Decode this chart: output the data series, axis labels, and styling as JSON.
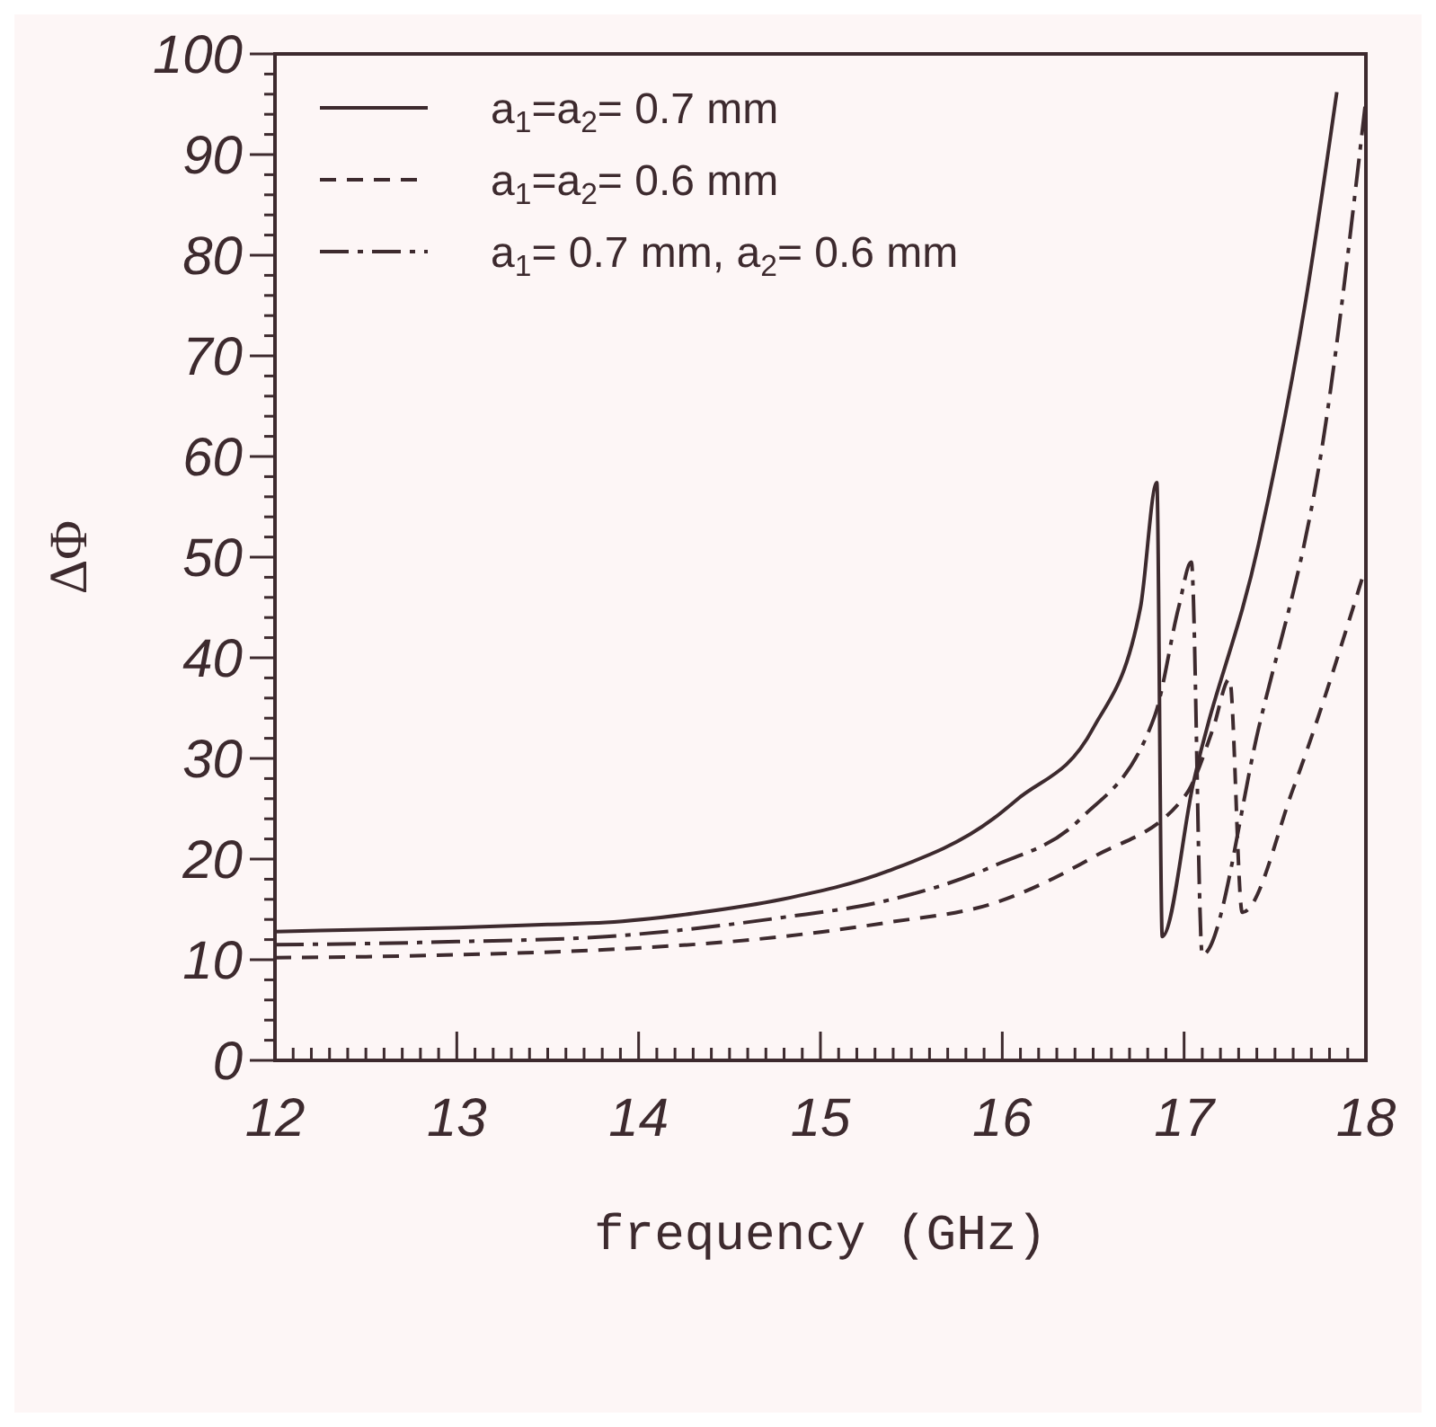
{
  "chart_data": {
    "type": "line",
    "xlabel": "frequency (GHz)",
    "ylabel": "ΔΦ",
    "xlim": [
      12,
      18
    ],
    "ylim": [
      0,
      100
    ],
    "xticks": [
      12,
      13,
      14,
      15,
      16,
      17,
      18,
      {
        "value": 12.1,
        "label": null
      },
      {
        "value": 12.2,
        "label": null
      },
      {
        "value": 12.3,
        "label": null
      },
      {
        "value": 12.4,
        "label": null
      },
      {
        "value": 12.5,
        "label": null
      },
      {
        "value": 12.6,
        "label": null
      },
      {
        "value": 12.7,
        "label": null
      },
      {
        "value": 12.8,
        "label": null
      },
      {
        "value": 12.9,
        "label": null
      },
      {
        "value": 13.1,
        "label": null
      },
      {
        "value": 13.2,
        "label": null
      },
      {
        "value": 13.3,
        "label": null
      },
      {
        "value": 13.4,
        "label": null
      },
      {
        "value": 13.5,
        "label": null
      },
      {
        "value": 13.6,
        "label": null
      },
      {
        "value": 13.7,
        "label": null
      },
      {
        "value": 13.8,
        "label": null
      },
      {
        "value": 13.9,
        "label": null
      },
      {
        "value": 14.1,
        "label": null
      },
      {
        "value": 14.2,
        "label": null
      },
      {
        "value": 14.3,
        "label": null
      },
      {
        "value": 14.4,
        "label": null
      },
      {
        "value": 14.5,
        "label": null
      },
      {
        "value": 14.6,
        "label": null
      },
      {
        "value": 14.7,
        "label": null
      },
      {
        "value": 14.8,
        "label": null
      },
      {
        "value": 14.9,
        "label": null
      },
      {
        "value": 15.1,
        "label": null
      },
      {
        "value": 15.2,
        "label": null
      },
      {
        "value": 15.3,
        "label": null
      },
      {
        "value": 15.4,
        "label": null
      },
      {
        "value": 15.5,
        "label": null
      },
      {
        "value": 15.6,
        "label": null
      },
      {
        "value": 15.7,
        "label": null
      },
      {
        "value": 15.8,
        "label": null
      },
      {
        "value": 15.9,
        "label": null
      },
      {
        "value": 16.1,
        "label": null
      },
      {
        "value": 16.2,
        "label": null
      },
      {
        "value": 16.3,
        "label": null
      },
      {
        "value": 16.4,
        "label": null
      },
      {
        "value": 16.5,
        "label": null
      },
      {
        "value": 16.6,
        "label": null
      },
      {
        "value": 16.7,
        "label": null
      },
      {
        "value": 16.8,
        "label": null
      },
      {
        "value": 16.9,
        "label": null
      },
      {
        "value": 17.1,
        "label": null
      },
      {
        "value": 17.2,
        "label": null
      },
      {
        "value": 17.3,
        "label": null
      },
      {
        "value": 17.4,
        "label": null
      },
      {
        "value": 17.5,
        "label": null
      },
      {
        "value": 17.6,
        "label": null
      },
      {
        "value": 17.7,
        "label": null
      },
      {
        "value": 17.8,
        "label": null
      },
      {
        "value": 17.9,
        "label": null
      }
    ],
    "yticks": [
      0,
      10,
      20,
      30,
      40,
      50,
      60,
      70,
      80,
      90,
      100,
      {
        "value": 2,
        "label": null
      },
      {
        "value": 4,
        "label": null
      },
      {
        "value": 6,
        "label": null
      },
      {
        "value": 8,
        "label": null
      },
      {
        "value": 12,
        "label": null
      },
      {
        "value": 14,
        "label": null
      },
      {
        "value": 16,
        "label": null
      },
      {
        "value": 18,
        "label": null
      },
      {
        "value": 22,
        "label": null
      },
      {
        "value": 24,
        "label": null
      },
      {
        "value": 26,
        "label": null
      },
      {
        "value": 28,
        "label": null
      },
      {
        "value": 32,
        "label": null
      },
      {
        "value": 34,
        "label": null
      },
      {
        "value": 36,
        "label": null
      },
      {
        "value": 38,
        "label": null
      },
      {
        "value": 42,
        "label": null
      },
      {
        "value": 44,
        "label": null
      },
      {
        "value": 46,
        "label": null
      },
      {
        "value": 48,
        "label": null
      },
      {
        "value": 52,
        "label": null
      },
      {
        "value": 54,
        "label": null
      },
      {
        "value": 56,
        "label": null
      },
      {
        "value": 58,
        "label": null
      },
      {
        "value": 62,
        "label": null
      },
      {
        "value": 64,
        "label": null
      },
      {
        "value": 66,
        "label": null
      },
      {
        "value": 68,
        "label": null
      },
      {
        "value": 72,
        "label": null
      },
      {
        "value": 74,
        "label": null
      },
      {
        "value": 76,
        "label": null
      },
      {
        "value": 78,
        "label": null
      },
      {
        "value": 82,
        "label": null
      },
      {
        "value": 84,
        "label": null
      },
      {
        "value": 86,
        "label": null
      },
      {
        "value": 88,
        "label": null
      },
      {
        "value": 92,
        "label": null
      },
      {
        "value": 94,
        "label": null
      },
      {
        "value": 96,
        "label": null
      },
      {
        "value": 98,
        "label": null
      }
    ],
    "grid": false,
    "legend": "top left",
    "marker": "none",
    "series": [
      {
        "name": "a$_{1}$=a$_{2}$= 0.7 mm",
        "color": "#3d2a2e",
        "line_style": "solid",
        "x": [
          12,
          12.5,
          13,
          13.5,
          13.82,
          14.3,
          14.79,
          15.37,
          15.95,
          16.08,
          16.5,
          16.76,
          16.85,
          16.88,
          17.05,
          17.41,
          17.67,
          17.84
        ],
        "values": [
          12.8,
          13,
          13.2,
          13.5,
          13.7,
          14.6,
          16,
          18.8,
          24,
          25.9,
          33,
          45,
          57.4,
          12.3,
          27.5,
          51.3,
          75.6,
          96.2
        ]
      },
      {
        "name": "a$_{1}$=a$_{2}$= 0.6 mm",
        "color": "#3d2a2e",
        "line_style": "dashed",
        "x": [
          12,
          12.5,
          13,
          13.82,
          14.79,
          15.37,
          15.95,
          16.5,
          17.01,
          17.16,
          17.25,
          17.32,
          17.6,
          17.99
        ],
        "values": [
          10.2,
          10.3,
          10.5,
          11,
          12.3,
          13.7,
          15.6,
          20.2,
          26.4,
          33,
          37.9,
          14.7,
          27,
          48.5
        ]
      },
      {
        "name": "a$_{1}$= 0.7 mm,  a$_{2}$= 0.6 mm",
        "color": "#3d2a2e",
        "line_style": "dashdot",
        "x": [
          12,
          12.5,
          13,
          13.82,
          14.79,
          15.37,
          15.95,
          16.43,
          16.84,
          16.97,
          17.04,
          17.1,
          17.41,
          17.78,
          18
        ],
        "values": [
          11.5,
          11.6,
          11.8,
          12.3,
          14.2,
          15.9,
          19.3,
          24,
          34.3,
          45,
          49.5,
          10.5,
          33,
          63.4,
          95.5
        ]
      }
    ]
  }
}
